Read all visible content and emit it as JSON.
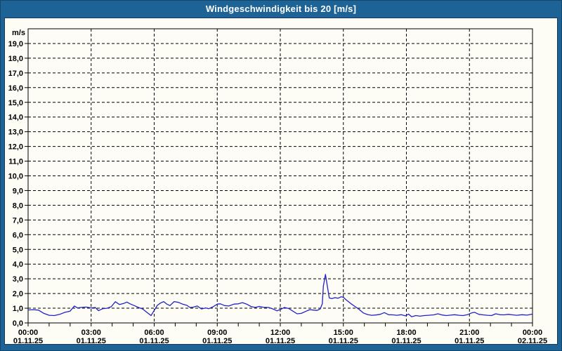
{
  "window": {
    "title": "Windgeschwindigkeit bis 20 [m/s]"
  },
  "colors": {
    "frame_blue": "#1E6396",
    "frame_edge": "#14456B",
    "panel_border": "#17375E",
    "panel_bg": "#FDFDF6",
    "line_blue": "#2121C8",
    "grid_black": "#000000",
    "title_text": "#FFFFFF"
  },
  "chart_data": {
    "type": "line",
    "title": "Windgeschwindigkeit bis 20 [m/s]",
    "ylabel": "m/s",
    "xlabel": "",
    "ylim": [
      0,
      20
    ],
    "xlim": [
      0,
      24
    ],
    "grid": "dashed black, horizontal every 1 m/s (1..19), vertical every 3 h",
    "legend": "none",
    "y_tick_labels": [
      "19,0",
      "18,0",
      "17,0",
      "16,0",
      "15,0",
      "14,0",
      "13,0",
      "12,0",
      "11,0",
      "10,0",
      "9,0",
      "8,0",
      "7,0",
      "6,0",
      "5,0",
      "4,0",
      "3,0",
      "2,0",
      "1,0",
      "0,0"
    ],
    "y_tick_values": [
      19,
      18,
      17,
      16,
      15,
      14,
      13,
      12,
      11,
      10,
      9,
      8,
      7,
      6,
      5,
      4,
      3,
      2,
      1,
      0
    ],
    "x_minor_tick_hours": 1,
    "x_ticks": [
      {
        "hour": 0,
        "time": "00:00",
        "date": "01.11.25"
      },
      {
        "hour": 3,
        "time": "03:00",
        "date": "01.11.25"
      },
      {
        "hour": 6,
        "time": "06:00",
        "date": "01.11.25"
      },
      {
        "hour": 9,
        "time": "09:00",
        "date": "01.11.25"
      },
      {
        "hour": 12,
        "time": "12:00",
        "date": "01.11.25"
      },
      {
        "hour": 15,
        "time": "15:00",
        "date": "01.11.25"
      },
      {
        "hour": 18,
        "time": "18:00",
        "date": "01.11.25"
      },
      {
        "hour": 21,
        "time": "21:00",
        "date": "01.11.25"
      },
      {
        "hour": 24,
        "time": "00:00",
        "date": "02.11.25"
      }
    ],
    "series": [
      {
        "name": "Windgeschwindigkeit",
        "unit": "m/s",
        "points": [
          [
            0,
            0.88
          ],
          [
            0.25,
            0.9
          ],
          [
            0.5,
            0.87
          ],
          [
            0.75,
            0.65
          ],
          [
            1,
            0.52
          ],
          [
            1.25,
            0.5
          ],
          [
            1.5,
            0.58
          ],
          [
            1.75,
            0.72
          ],
          [
            2,
            0.8
          ],
          [
            2.2,
            1.15
          ],
          [
            2.35,
            1.02
          ],
          [
            2.5,
            1.05
          ],
          [
            2.75,
            1.08
          ],
          [
            3,
            1.02
          ],
          [
            3.2,
            1.05
          ],
          [
            3.35,
            0.83
          ],
          [
            3.55,
            0.97
          ],
          [
            3.75,
            1.0
          ],
          [
            3.95,
            1.1
          ],
          [
            4.15,
            1.44
          ],
          [
            4.35,
            1.25
          ],
          [
            4.55,
            1.32
          ],
          [
            4.7,
            1.42
          ],
          [
            4.85,
            1.3
          ],
          [
            5.05,
            1.18
          ],
          [
            5.25,
            1.05
          ],
          [
            5.45,
            0.95
          ],
          [
            5.65,
            0.72
          ],
          [
            5.85,
            0.5
          ],
          [
            6,
            0.85
          ],
          [
            6.15,
            1.2
          ],
          [
            6.3,
            1.35
          ],
          [
            6.45,
            1.45
          ],
          [
            6.6,
            1.28
          ],
          [
            6.75,
            1.18
          ],
          [
            6.95,
            1.45
          ],
          [
            7.15,
            1.4
          ],
          [
            7.35,
            1.28
          ],
          [
            7.55,
            1.2
          ],
          [
            7.7,
            1.05
          ],
          [
            7.85,
            1.07
          ],
          [
            8.05,
            1.15
          ],
          [
            8.25,
            0.95
          ],
          [
            8.45,
            1.02
          ],
          [
            8.6,
            0.97
          ],
          [
            8.8,
            1.1
          ],
          [
            9,
            1.28
          ],
          [
            9.15,
            1.3
          ],
          [
            9.35,
            1.18
          ],
          [
            9.55,
            1.15
          ],
          [
            9.8,
            1.28
          ],
          [
            10,
            1.3
          ],
          [
            10.2,
            1.38
          ],
          [
            10.4,
            1.28
          ],
          [
            10.6,
            1.12
          ],
          [
            10.8,
            1.05
          ],
          [
            11,
            1.12
          ],
          [
            11.2,
            1.06
          ],
          [
            11.45,
            1.05
          ],
          [
            11.65,
            0.95
          ],
          [
            11.85,
            0.82
          ],
          [
            12.05,
            0.95
          ],
          [
            12.2,
            1.05
          ],
          [
            12.4,
            0.98
          ],
          [
            12.6,
            0.8
          ],
          [
            12.8,
            0.62
          ],
          [
            13,
            0.65
          ],
          [
            13.2,
            0.78
          ],
          [
            13.4,
            0.9
          ],
          [
            13.6,
            0.87
          ],
          [
            13.75,
            0.85
          ],
          [
            13.9,
            0.95
          ],
          [
            14,
            1.3
          ],
          [
            14.05,
            2.5
          ],
          [
            14.15,
            3.3
          ],
          [
            14.25,
            2.4
          ],
          [
            14.33,
            1.7
          ],
          [
            14.45,
            1.65
          ],
          [
            14.6,
            1.72
          ],
          [
            14.75,
            1.68
          ],
          [
            14.9,
            1.78
          ],
          [
            15,
            1.74
          ],
          [
            15.15,
            1.55
          ],
          [
            15.35,
            1.32
          ],
          [
            15.55,
            1.12
          ],
          [
            15.75,
            0.92
          ],
          [
            15.95,
            0.68
          ],
          [
            16.15,
            0.57
          ],
          [
            16.35,
            0.52
          ],
          [
            16.55,
            0.54
          ],
          [
            16.75,
            0.58
          ],
          [
            16.95,
            0.7
          ],
          [
            17.15,
            0.56
          ],
          [
            17.35,
            0.55
          ],
          [
            17.55,
            0.52
          ],
          [
            17.75,
            0.56
          ],
          [
            17.95,
            0.48
          ],
          [
            18.1,
            0.6
          ],
          [
            18.25,
            0.42
          ],
          [
            18.45,
            0.5
          ],
          [
            18.65,
            0.46
          ],
          [
            18.85,
            0.5
          ],
          [
            19.05,
            0.52
          ],
          [
            19.3,
            0.55
          ],
          [
            19.5,
            0.62
          ],
          [
            19.7,
            0.54
          ],
          [
            19.9,
            0.5
          ],
          [
            20.1,
            0.53
          ],
          [
            20.3,
            0.56
          ],
          [
            20.5,
            0.52
          ],
          [
            20.7,
            0.5
          ],
          [
            20.9,
            0.56
          ],
          [
            21.1,
            0.68
          ],
          [
            21.25,
            0.72
          ],
          [
            21.45,
            0.58
          ],
          [
            21.65,
            0.55
          ],
          [
            21.85,
            0.52
          ],
          [
            22.05,
            0.5
          ],
          [
            22.25,
            0.62
          ],
          [
            22.45,
            0.56
          ],
          [
            22.65,
            0.55
          ],
          [
            22.85,
            0.58
          ],
          [
            23.05,
            0.55
          ],
          [
            23.25,
            0.52
          ],
          [
            23.5,
            0.56
          ],
          [
            23.75,
            0.53
          ],
          [
            24,
            0.6
          ]
        ]
      }
    ]
  }
}
